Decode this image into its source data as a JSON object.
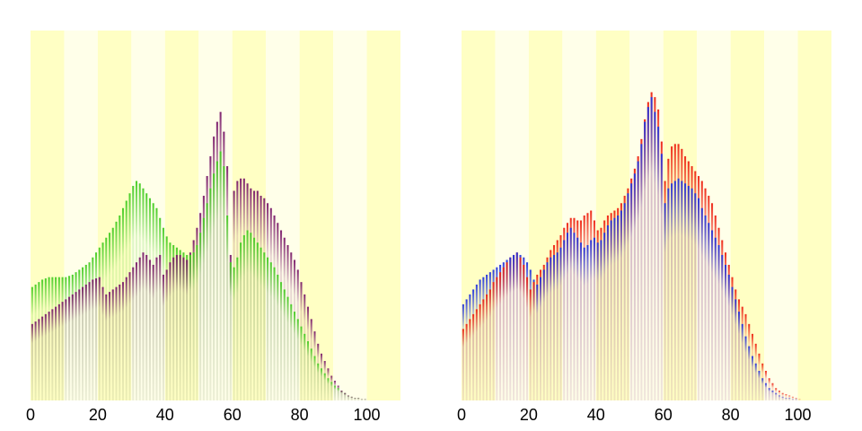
{
  "chart_data": [
    {
      "type": "bar",
      "title": "",
      "xlabel": "",
      "ylabel": "",
      "xlim": [
        0,
        110
      ],
      "ylim": [
        0,
        300
      ],
      "grid": false,
      "legend": "none",
      "xticks": [
        0,
        20,
        40,
        60,
        80,
        100
      ],
      "xtick_labels": [
        "0",
        "20",
        "40",
        "60",
        "80",
        "100"
      ],
      "background_bands": {
        "width": 10,
        "colors": [
          "#ffffc4",
          "#ffffe9"
        ]
      },
      "x": [
        0,
        1,
        2,
        3,
        4,
        5,
        6,
        7,
        8,
        9,
        10,
        11,
        12,
        13,
        14,
        15,
        16,
        17,
        18,
        19,
        20,
        21,
        22,
        23,
        24,
        25,
        26,
        27,
        28,
        29,
        30,
        31,
        32,
        33,
        34,
        35,
        36,
        37,
        38,
        39,
        40,
        41,
        42,
        43,
        44,
        45,
        46,
        47,
        48,
        49,
        50,
        51,
        52,
        53,
        54,
        55,
        56,
        57,
        58,
        59,
        60,
        61,
        62,
        63,
        64,
        65,
        66,
        67,
        68,
        69,
        70,
        71,
        72,
        73,
        74,
        75,
        76,
        77,
        78,
        79,
        80,
        81,
        82,
        83,
        84,
        85,
        86,
        87,
        88,
        89,
        90,
        91,
        92,
        93,
        94,
        95,
        96,
        97,
        98,
        99,
        100
      ],
      "series": [
        {
          "color": "#44cc22",
          "values": [
            92,
            94,
            96,
            98,
            99,
            100,
            100,
            100,
            100,
            100,
            100,
            101,
            102,
            104,
            106,
            108,
            110,
            112,
            116,
            120,
            124,
            128,
            132,
            136,
            140,
            145,
            150,
            156,
            162,
            168,
            174,
            178,
            176,
            172,
            168,
            164,
            160,
            156,
            148,
            140,
            133,
            128,
            126,
            124,
            122,
            120,
            118,
            118,
            120,
            126,
            136,
            148,
            160,
            172,
            184,
            194,
            202,
            190,
            150,
            112,
            108,
            116,
            128,
            134,
            138,
            136,
            132,
            128,
            124,
            120,
            116,
            112,
            108,
            102,
            96,
            90,
            84,
            78,
            72,
            66,
            60,
            54,
            48,
            42,
            36,
            30,
            26,
            22,
            18,
            15,
            12,
            10,
            8,
            6,
            4,
            3,
            2,
            2,
            1,
            1,
            0
          ]
        },
        {
          "color": "#7a1a6a",
          "values": [
            62,
            64,
            66,
            68,
            70,
            72,
            74,
            76,
            78,
            80,
            82,
            84,
            86,
            88,
            90,
            92,
            94,
            96,
            98,
            99,
            100,
            92,
            86,
            88,
            90,
            92,
            94,
            96,
            100,
            104,
            108,
            112,
            116,
            120,
            118,
            114,
            110,
            116,
            118,
            102,
            106,
            112,
            116,
            118,
            118,
            116,
            114,
            120,
            130,
            140,
            152,
            166,
            182,
            198,
            214,
            226,
            234,
            218,
            190,
            118,
            170,
            178,
            180,
            180,
            176,
            172,
            170,
            170,
            166,
            164,
            160,
            156,
            150,
            144,
            138,
            132,
            126,
            120,
            114,
            106,
            96,
            86,
            76,
            66,
            56,
            46,
            38,
            32,
            26,
            20,
            16,
            12,
            8,
            6,
            4,
            3,
            2,
            2,
            1,
            1,
            0
          ]
        }
      ]
    },
    {
      "type": "bar",
      "title": "",
      "xlabel": "",
      "ylabel": "",
      "xlim": [
        0,
        110
      ],
      "ylim": [
        0,
        300
      ],
      "grid": false,
      "legend": "none",
      "xticks": [
        0,
        20,
        40,
        60,
        80,
        100
      ],
      "xtick_labels": [
        "0",
        "20",
        "40",
        "60",
        "80",
        "100"
      ],
      "background_bands": {
        "width": 10,
        "colors": [
          "#ffffc4",
          "#ffffe9"
        ]
      },
      "x": [
        0,
        1,
        2,
        3,
        4,
        5,
        6,
        7,
        8,
        9,
        10,
        11,
        12,
        13,
        14,
        15,
        16,
        17,
        18,
        19,
        20,
        21,
        22,
        23,
        24,
        25,
        26,
        27,
        28,
        29,
        30,
        31,
        32,
        33,
        34,
        35,
        36,
        37,
        38,
        39,
        40,
        41,
        42,
        43,
        44,
        45,
        46,
        47,
        48,
        49,
        50,
        51,
        52,
        53,
        54,
        55,
        56,
        57,
        58,
        59,
        60,
        61,
        62,
        63,
        64,
        65,
        66,
        67,
        68,
        69,
        70,
        71,
        72,
        73,
        74,
        75,
        76,
        77,
        78,
        79,
        80,
        81,
        82,
        83,
        84,
        85,
        86,
        87,
        88,
        89,
        90,
        91,
        92,
        93,
        94,
        95,
        96,
        97,
        98,
        99,
        100
      ],
      "series": [
        {
          "color": "#ee2211",
          "values": [
            58,
            62,
            66,
            70,
            74,
            78,
            82,
            86,
            90,
            96,
            100,
            104,
            108,
            112,
            116,
            118,
            120,
            116,
            110,
            100,
            90,
            96,
            102,
            106,
            110,
            116,
            122,
            126,
            130,
            134,
            140,
            144,
            148,
            148,
            146,
            146,
            150,
            152,
            154,
            146,
            138,
            140,
            146,
            150,
            152,
            154,
            156,
            160,
            166,
            172,
            180,
            188,
            198,
            212,
            228,
            242,
            250,
            246,
            236,
            210,
            178,
            196,
            206,
            208,
            208,
            204,
            198,
            194,
            190,
            186,
            182,
            178,
            172,
            166,
            160,
            150,
            140,
            130,
            120,
            110,
            100,
            90,
            82,
            76,
            70,
            62,
            54,
            46,
            38,
            30,
            24,
            18,
            14,
            10,
            8,
            6,
            5,
            4,
            3,
            2,
            1
          ]
        },
        {
          "color": "#2233dd",
          "values": [
            78,
            82,
            86,
            90,
            94,
            98,
            100,
            102,
            104,
            106,
            108,
            110,
            112,
            114,
            116,
            118,
            120,
            118,
            116,
            112,
            106,
            98,
            94,
            100,
            106,
            112,
            116,
            118,
            120,
            124,
            130,
            136,
            140,
            136,
            132,
            128,
            124,
            126,
            130,
            132,
            128,
            130,
            136,
            142,
            146,
            148,
            150,
            154,
            160,
            168,
            176,
            184,
            194,
            208,
            226,
            238,
            246,
            234,
            222,
            200,
            160,
            172,
            176,
            178,
            180,
            178,
            176,
            174,
            172,
            168,
            164,
            156,
            150,
            144,
            138,
            132,
            126,
            118,
            110,
            102,
            92,
            82,
            72,
            62,
            52,
            44,
            36,
            30,
            24,
            18,
            14,
            10,
            8,
            6,
            4,
            3,
            2,
            2,
            1,
            1,
            0
          ]
        }
      ]
    }
  ]
}
